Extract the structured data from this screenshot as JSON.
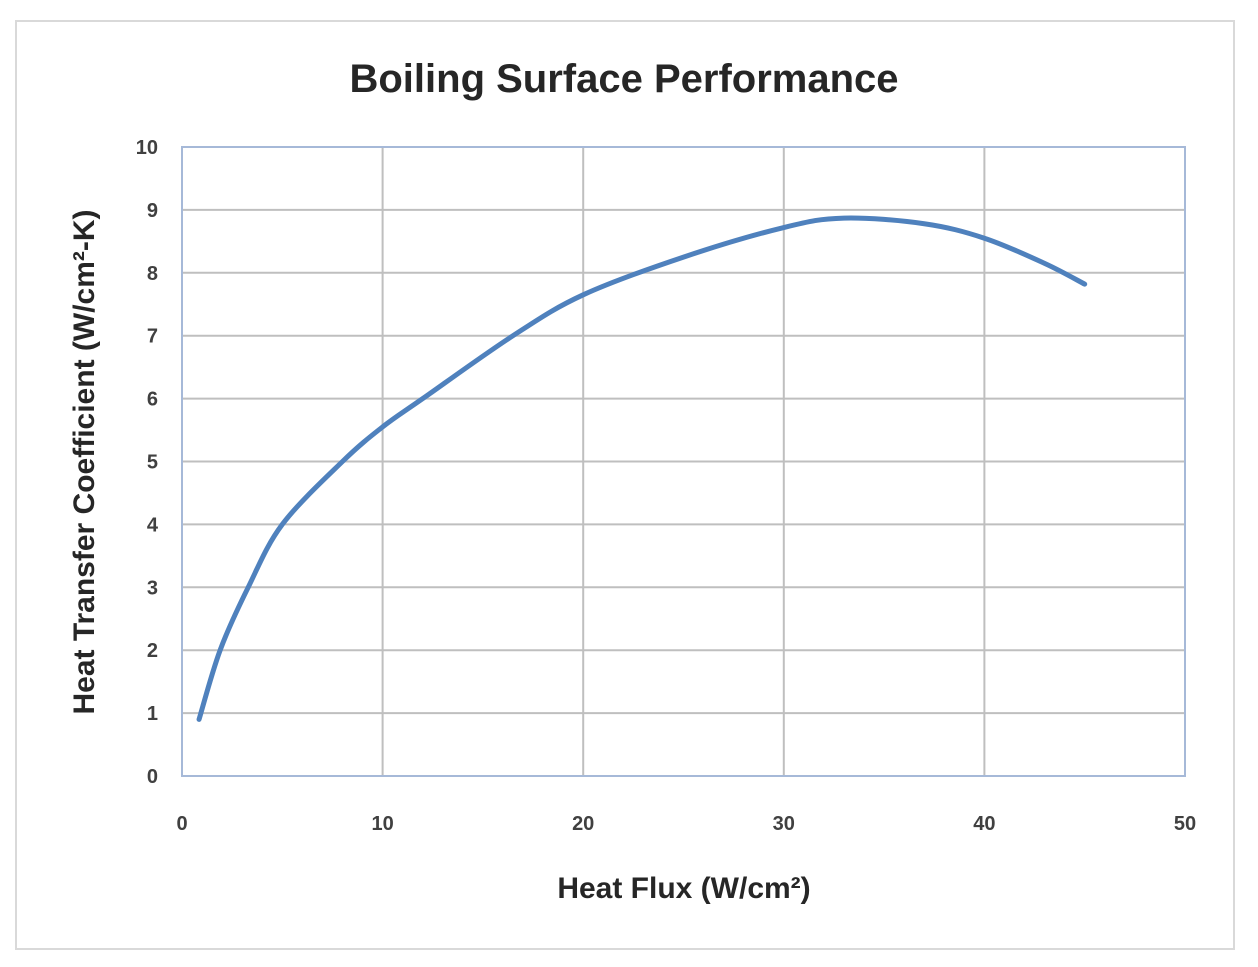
{
  "chart_data": {
    "type": "line",
    "title": "Boiling Surface Performance",
    "xlabel": "Heat Flux (W/cm²)",
    "ylabel": "Heat Transfer Coefficient (W/cm²-K)",
    "xlim": [
      0,
      50
    ],
    "ylim": [
      0,
      10
    ],
    "xticks": [
      0,
      10,
      20,
      30,
      40,
      50
    ],
    "yticks": [
      0,
      1,
      2,
      3,
      4,
      5,
      6,
      7,
      8,
      9,
      10
    ],
    "grid": true,
    "legend": "none",
    "series": [
      {
        "color": "#4f81bd",
        "x": [
          0.85,
          1.9,
          3.3,
          5,
          8,
          10,
          12,
          16.5,
          20,
          25,
          30,
          33,
          37,
          40,
          43,
          45
        ],
        "y": [
          0.9,
          2,
          3,
          4,
          5,
          5.55,
          6,
          7,
          7.65,
          8.25,
          8.72,
          8.87,
          8.78,
          8.55,
          8.15,
          7.82
        ]
      }
    ]
  }
}
